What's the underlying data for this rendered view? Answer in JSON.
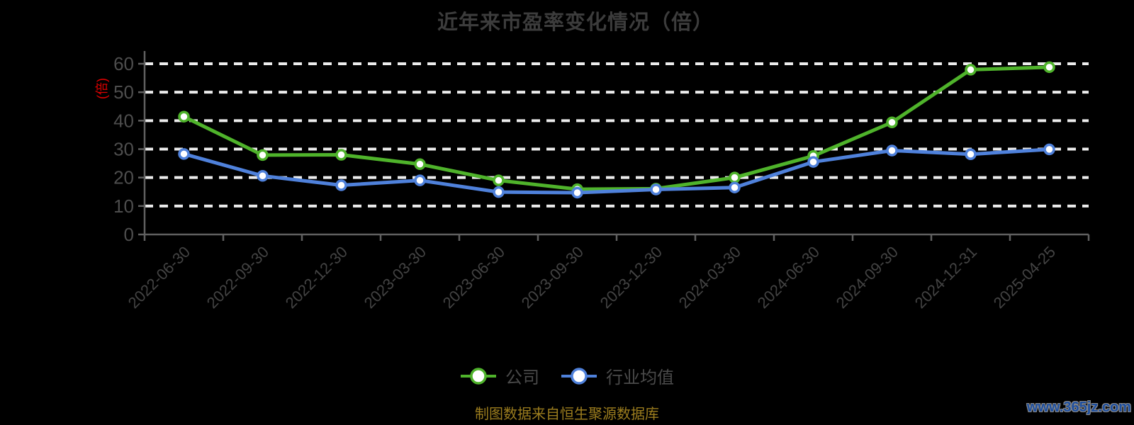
{
  "title": "近年来市盈率变化情况（倍）",
  "y_axis_name": "(倍)",
  "footer": "制图数据来自恒生聚源数据库",
  "watermark": "www.365jz.com",
  "legend": [
    {
      "label": "公司",
      "color": "#4fb32b"
    },
    {
      "label": "行业均值",
      "color": "#4f81db"
    }
  ],
  "colors": {
    "background": "#000000",
    "title_gray": "#3c3c3c",
    "axis_gray": "#606060",
    "tick_label_gray": "#4d4d4d",
    "x_label_gray": "#434343",
    "grid_white": "#ececec",
    "company_green": "#4fb32b",
    "industry_blue": "#4f81db",
    "y_name_red": "#e00000",
    "footer_gold": "#9c7d1e",
    "watermark_blue": "#1e4f9f"
  },
  "chart_data": {
    "type": "line",
    "title": "近年来市盈率变化情况（倍）",
    "ylabel": "(倍)",
    "xlabel": "",
    "categories": [
      "2022-06-30",
      "2022-09-30",
      "2022-12-30",
      "2023-03-30",
      "2023-06-30",
      "2023-09-30",
      "2023-12-30",
      "2024-03-30",
      "2024-06-30",
      "2024-09-30",
      "2024-12-31",
      "2025-04-25"
    ],
    "series": [
      {
        "name": "公司",
        "color": "#4fb32b",
        "values": [
          41.4,
          27.9,
          28.0,
          24.7,
          19.0,
          15.9,
          16.1,
          20.0,
          27.6,
          39.4,
          57.9,
          58.8
        ]
      },
      {
        "name": "行业均值",
        "color": "#4f81db",
        "values": [
          28.3,
          20.6,
          17.3,
          19.0,
          14.9,
          14.7,
          15.8,
          16.5,
          25.5,
          29.5,
          28.2,
          29.9
        ]
      }
    ],
    "ylim": [
      0,
      60
    ],
    "y_ticks": [
      0,
      10,
      20,
      30,
      40,
      50,
      60
    ],
    "grid": "horizontal-dashed-white",
    "legend_position": "bottom",
    "marker": "circle-white-fill"
  }
}
